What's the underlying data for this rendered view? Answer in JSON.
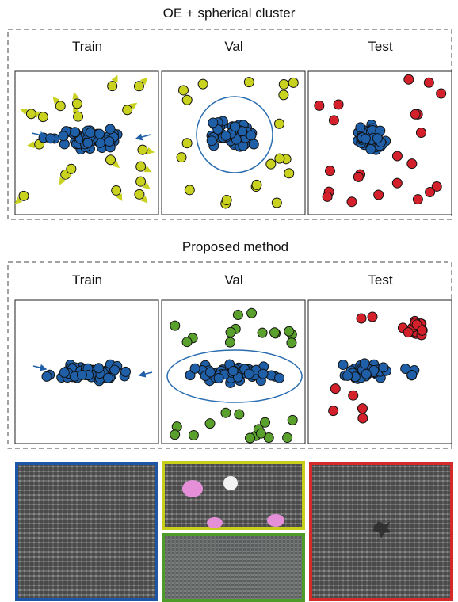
{
  "colors": {
    "normal": "#1f5fa8",
    "oe_outlier": "#c9d21e",
    "synthetic_outlier": "#5aa02c",
    "test_anomaly": "#d4202a",
    "boundary": "#2a6db0",
    "border_blue": "#1d56a6",
    "border_yellow": "#c8cf1a",
    "border_green": "#4f9b2a",
    "border_red": "#d42a2a"
  },
  "sections": [
    {
      "title": "OE + spherical cluster",
      "panels": [
        {
          "label": "Train",
          "outlier_type": "oe_outlier",
          "outliers_with_arrows": true
        },
        {
          "label": "Val",
          "outlier_type": "oe_outlier",
          "boundary": "circle"
        },
        {
          "label": "Test",
          "outlier_type": "test_anomaly"
        }
      ]
    },
    {
      "title": "Proposed method",
      "panels": [
        {
          "label": "Train",
          "outlier_type": "none"
        },
        {
          "label": "Val",
          "outlier_type": "synthetic_outlier",
          "boundary": "ellipse"
        },
        {
          "label": "Test",
          "outlier_type": "test_anomaly"
        }
      ]
    }
  ],
  "texture_panels": [
    {
      "name": "normal-fabric",
      "border": "border_blue"
    },
    {
      "name": "oe-fabric-with-color-blobs",
      "border": "border_yellow"
    },
    {
      "name": "synthetic-fabric",
      "border": "border_green"
    },
    {
      "name": "defective-fabric",
      "border": "border_red"
    }
  ]
}
